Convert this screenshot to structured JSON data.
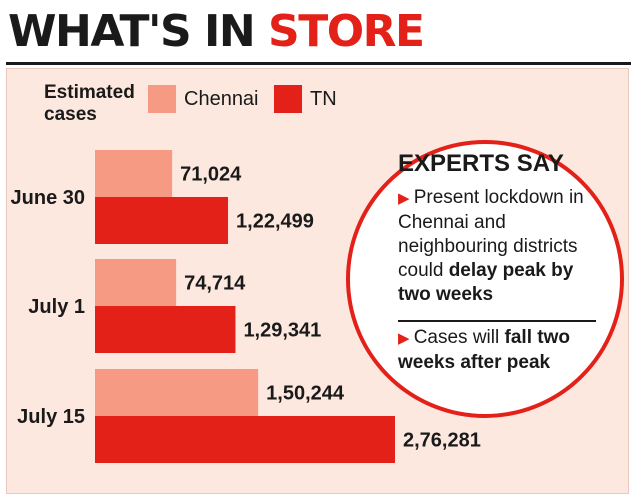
{
  "title": {
    "part1": "WHAT'S IN ",
    "part2": "STORE"
  },
  "legend": {
    "caption_line1": "Estimated",
    "caption_line2": "cases",
    "chennai": "Chennai",
    "tn": "TN"
  },
  "colors": {
    "chennai": "#f79a84",
    "tn": "#e32119",
    "panel": "#fce8df",
    "accent": "#e32119"
  },
  "chart_data": {
    "type": "bar",
    "orientation": "horizontal",
    "categories": [
      "June 30",
      "July 1",
      "July 15"
    ],
    "series": [
      {
        "name": "Chennai",
        "values": [
          71024,
          74714,
          150244
        ],
        "labels": [
          "71,024",
          "74,714",
          "1,50,244"
        ]
      },
      {
        "name": "TN",
        "values": [
          122499,
          129341,
          276281
        ],
        "labels": [
          "1,22,499",
          "1,29,341",
          "2,76,281"
        ]
      }
    ],
    "legend_position": "top-left",
    "grid": false
  },
  "experts": {
    "title": "EXPERTS SAY",
    "point1": {
      "text_before": "Present lockdown in Chennai and neighbouring districts could ",
      "bold": "delay peak by two weeks"
    },
    "point2": {
      "text_before": "Cases will ",
      "bold": "fall two weeks after peak"
    }
  }
}
